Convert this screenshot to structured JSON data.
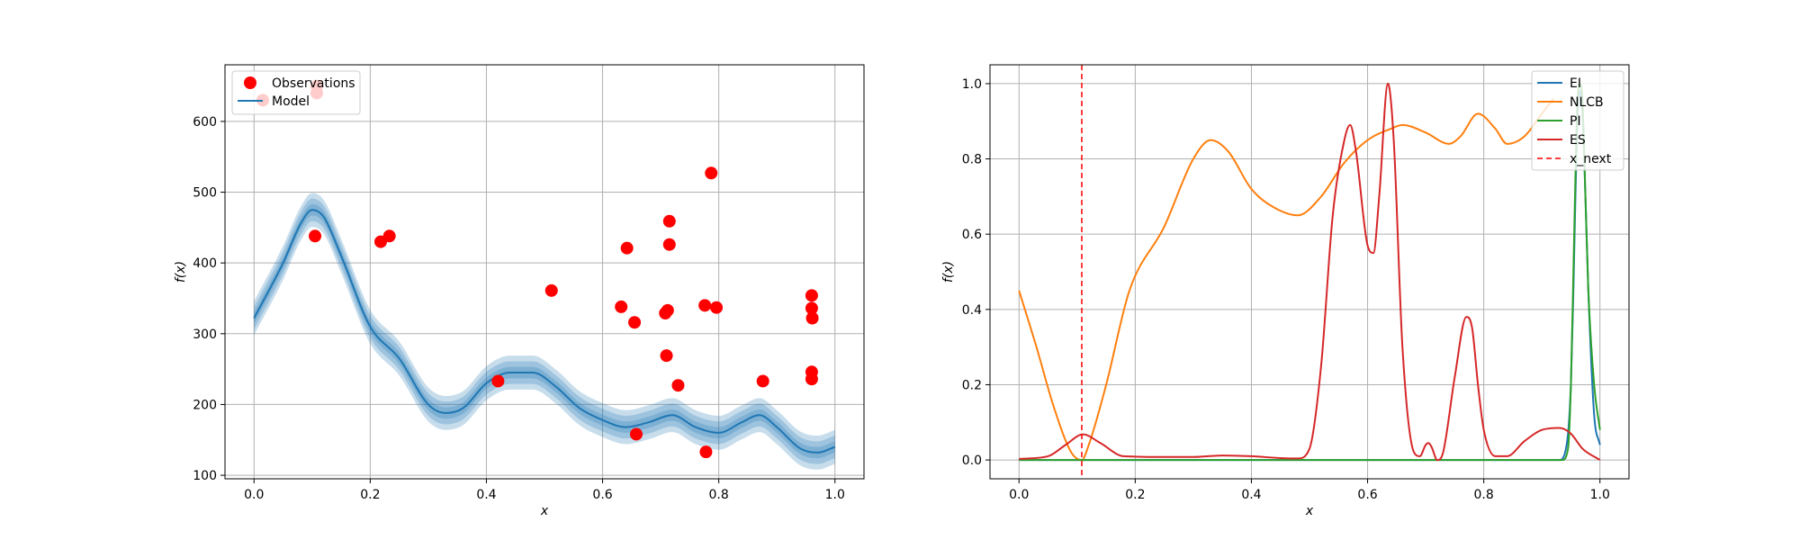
{
  "chart_data": [
    {
      "type": "scatter",
      "xlabel": "x",
      "ylabel": "f(x)",
      "xlim": [
        -0.05,
        1.05
      ],
      "ylim": [
        95,
        680
      ],
      "xticks": [
        0.0,
        0.2,
        0.4,
        0.6,
        0.8,
        1.0
      ],
      "xtick_labels": [
        "0.0",
        "0.2",
        "0.4",
        "0.6",
        "0.8",
        "1.0"
      ],
      "yticks": [
        100,
        200,
        300,
        400,
        500,
        600
      ],
      "ytick_labels": [
        "100",
        "200",
        "300",
        "400",
        "500",
        "600"
      ],
      "grid": true,
      "legend": {
        "placement": "upper-left",
        "entries": [
          {
            "label": "Observations",
            "color": "#ff0000",
            "marker": "circle"
          },
          {
            "label": "Model",
            "color": "#1f77b4",
            "marker": "line"
          }
        ]
      },
      "series": [
        {
          "name": "Observations",
          "kind": "scatter",
          "color": "#ff0000",
          "points": [
            [
              0.015,
              630
            ],
            [
              0.108,
              640
            ],
            [
              0.108,
              650
            ],
            [
              0.105,
              438
            ],
            [
              0.218,
              430
            ],
            [
              0.233,
              438
            ],
            [
              0.42,
              233
            ],
            [
              0.512,
              361
            ],
            [
              0.632,
              338
            ],
            [
              0.642,
              421
            ],
            [
              0.655,
              316
            ],
            [
              0.658,
              158
            ],
            [
              0.708,
              329
            ],
            [
              0.712,
              333
            ],
            [
              0.71,
              269
            ],
            [
              0.715,
              459
            ],
            [
              0.715,
              426
            ],
            [
              0.73,
              227
            ],
            [
              0.776,
              340
            ],
            [
              0.778,
              133
            ],
            [
              0.787,
              527
            ],
            [
              0.796,
              337
            ],
            [
              0.876,
              233
            ],
            [
              0.96,
              354
            ],
            [
              0.96,
              336
            ],
            [
              0.961,
              322
            ],
            [
              0.96,
              246
            ],
            [
              0.96,
              236
            ]
          ]
        },
        {
          "name": "Model",
          "kind": "line",
          "color": "#1f77b4",
          "x": [
            0.0,
            0.05,
            0.08,
            0.1,
            0.12,
            0.15,
            0.2,
            0.25,
            0.3,
            0.33,
            0.36,
            0.4,
            0.44,
            0.48,
            0.52,
            0.56,
            0.6,
            0.64,
            0.68,
            0.72,
            0.76,
            0.8,
            0.84,
            0.87,
            0.9,
            0.94,
            0.97,
            1.0
          ],
          "y": [
            322,
            400,
            455,
            475,
            465,
            410,
            310,
            265,
            200,
            188,
            195,
            230,
            245,
            245,
            225,
            195,
            178,
            168,
            175,
            185,
            168,
            160,
            175,
            185,
            168,
            138,
            132,
            140
          ],
          "bands": [
            8,
            16,
            24
          ]
        }
      ]
    },
    {
      "type": "line",
      "xlabel": "x",
      "ylabel": "f(x)",
      "xlim": [
        -0.05,
        1.05
      ],
      "ylim": [
        -0.05,
        1.05
      ],
      "xticks": [
        0.0,
        0.2,
        0.4,
        0.6,
        0.8,
        1.0
      ],
      "xtick_labels": [
        "0.0",
        "0.2",
        "0.4",
        "0.6",
        "0.8",
        "1.0"
      ],
      "yticks": [
        0.0,
        0.2,
        0.4,
        0.6,
        0.8,
        1.0
      ],
      "ytick_labels": [
        "0.0",
        "0.2",
        "0.4",
        "0.6",
        "0.8",
        "1.0"
      ],
      "grid": true,
      "legend": {
        "placement": "upper-right",
        "entries": [
          {
            "label": "EI",
            "color": "#1f77b4",
            "style": "solid"
          },
          {
            "label": "NLCB",
            "color": "#ff7f0e",
            "style": "solid"
          },
          {
            "label": "PI",
            "color": "#2ca02c",
            "style": "solid"
          },
          {
            "label": "ES",
            "color": "#d62728",
            "style": "solid"
          },
          {
            "label": "x_next",
            "color": "#ff0000",
            "style": "dashed"
          }
        ]
      },
      "x_next": 0.108,
      "series": [
        {
          "name": "EI",
          "color": "#1f77b4",
          "x": [
            0.0,
            0.93,
            0.94,
            0.95,
            0.955,
            0.96,
            0.965,
            0.97,
            0.975,
            0.98,
            0.99,
            1.0
          ],
          "y": [
            0.0,
            0.0,
            0.02,
            0.2,
            0.5,
            0.85,
            0.98,
            0.92,
            0.7,
            0.45,
            0.12,
            0.04
          ]
        },
        {
          "name": "NLCB",
          "color": "#ff7f0e",
          "x": [
            0.0,
            0.03,
            0.06,
            0.09,
            0.108,
            0.12,
            0.15,
            0.19,
            0.25,
            0.3,
            0.33,
            0.36,
            0.4,
            0.44,
            0.48,
            0.52,
            0.56,
            0.6,
            0.64,
            0.66,
            0.7,
            0.74,
            0.76,
            0.79,
            0.82,
            0.84,
            0.87,
            0.9,
            0.92
          ],
          "y": [
            0.45,
            0.3,
            0.14,
            0.02,
            0.0,
            0.04,
            0.2,
            0.45,
            0.62,
            0.8,
            0.85,
            0.82,
            0.72,
            0.67,
            0.65,
            0.7,
            0.79,
            0.85,
            0.88,
            0.89,
            0.87,
            0.84,
            0.86,
            0.92,
            0.88,
            0.84,
            0.86,
            0.92,
            0.96
          ]
        },
        {
          "name": "PI",
          "color": "#2ca02c",
          "x": [
            0.0,
            0.935,
            0.945,
            0.95,
            0.955,
            0.96,
            0.965,
            0.97,
            0.975,
            0.98,
            0.99,
            1.0
          ],
          "y": [
            0.0,
            0.0,
            0.03,
            0.2,
            0.55,
            0.9,
            1.0,
            0.95,
            0.7,
            0.45,
            0.2,
            0.08
          ]
        },
        {
          "name": "ES",
          "color": "#d62728",
          "x": [
            0.0,
            0.05,
            0.08,
            0.11,
            0.14,
            0.18,
            0.25,
            0.3,
            0.35,
            0.4,
            0.45,
            0.48,
            0.5,
            0.52,
            0.54,
            0.56,
            0.57,
            0.58,
            0.6,
            0.61,
            0.62,
            0.635,
            0.645,
            0.66,
            0.68,
            0.69,
            0.7,
            0.705,
            0.71,
            0.72,
            0.73,
            0.75,
            0.77,
            0.78,
            0.79,
            0.8,
            0.82,
            0.84,
            0.87,
            0.9,
            0.93,
            0.95,
            0.97,
            1.0
          ],
          "y": [
            0.003,
            0.01,
            0.04,
            0.068,
            0.045,
            0.01,
            0.008,
            0.008,
            0.012,
            0.01,
            0.005,
            0.004,
            0.03,
            0.25,
            0.65,
            0.85,
            0.89,
            0.82,
            0.57,
            0.55,
            0.7,
            1.0,
            0.85,
            0.3,
            0.02,
            0.01,
            0.04,
            0.045,
            0.035,
            0.0,
            0.02,
            0.22,
            0.38,
            0.35,
            0.2,
            0.08,
            0.01,
            0.01,
            0.05,
            0.08,
            0.085,
            0.07,
            0.03,
            0.0
          ]
        }
      ]
    }
  ]
}
